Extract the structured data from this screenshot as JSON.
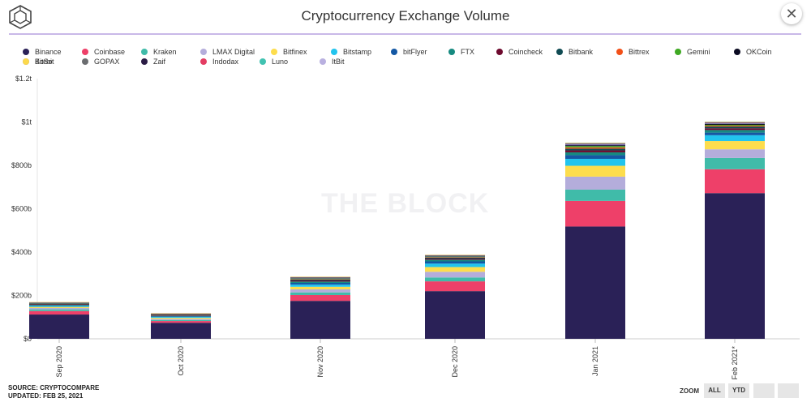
{
  "header": {
    "title": "Cryptocurrency Exchange Volume",
    "close_label": "✕"
  },
  "legend": {
    "items": [
      {
        "label": "Binance",
        "color": "#2a2157"
      },
      {
        "label": "Coinbase",
        "color": "#ee4069"
      },
      {
        "label": "Kraken",
        "color": "#40bba9"
      },
      {
        "label": "LMAX Digital",
        "color": "#b4addb"
      },
      {
        "label": "Bitfinex",
        "color": "#fddd4d"
      },
      {
        "label": "Bitstamp",
        "color": "#22c4ee"
      },
      {
        "label": "bitFlyer",
        "color": "#1458a4"
      },
      {
        "label": "FTX",
        "color": "#168a80"
      },
      {
        "label": "Coincheck",
        "color": "#6e0a2e"
      },
      {
        "label": "Bitbank",
        "color": "#104b53"
      },
      {
        "label": "Bittrex",
        "color": "#f25018"
      },
      {
        "label": "Gemini",
        "color": "#3fa923"
      },
      {
        "label": "OKCoin",
        "color": "#0b0b22"
      },
      {
        "label": "BitSo",
        "color": "#7170d5"
      },
      {
        "label": "GOPAX",
        "color": "#6b6d70"
      },
      {
        "label": "Zaif",
        "color": "#2a1b45"
      },
      {
        "label": "Indodax",
        "color": "#e33c62"
      },
      {
        "label": "Luno",
        "color": "#41c2b1"
      },
      {
        "label": "ItBit",
        "color": "#b9b0e0"
      },
      {
        "label": "Korbit",
        "color": "#fcd94b"
      }
    ]
  },
  "chart_data": {
    "type": "bar",
    "stacked": true,
    "title": "Cryptocurrency Exchange Volume",
    "xlabel": "",
    "ylabel": "",
    "categories": [
      "Sep 2020",
      "Oct 2020",
      "Nov 2020",
      "Dec 2020",
      "Jan 2021",
      "Feb 2021*"
    ],
    "ylim": [
      0,
      1200
    ],
    "y_unit": "billions USD",
    "y_ticks": [
      0,
      200,
      400,
      600,
      800,
      1000,
      1200
    ],
    "y_tick_labels": [
      "$0",
      "$200b",
      "$400b",
      "$600b",
      "$800b",
      "$1t",
      "$1.2t"
    ],
    "grid": false,
    "legend_position": "top",
    "series": [
      {
        "name": "Binance",
        "values": [
          112,
          74,
          175,
          220,
          518,
          672
        ]
      },
      {
        "name": "Coinbase",
        "values": [
          16,
          8,
          27,
          45,
          118,
          110
        ]
      },
      {
        "name": "Kraken",
        "values": [
          8,
          5,
          12,
          18,
          52,
          52
        ]
      },
      {
        "name": "LMAX Digital",
        "values": [
          6,
          5,
          14,
          26,
          60,
          40
        ]
      },
      {
        "name": "Bitfinex",
        "values": [
          5,
          5,
          12,
          22,
          50,
          38
        ]
      },
      {
        "name": "Bitstamp",
        "values": [
          4,
          4,
          10,
          16,
          32,
          27
        ]
      },
      {
        "name": "bitFlyer",
        "values": [
          3,
          3,
          8,
          10,
          17,
          12
        ]
      },
      {
        "name": "FTX",
        "values": [
          3,
          2,
          6,
          8,
          13,
          12
        ]
      },
      {
        "name": "Coincheck",
        "values": [
          2,
          2,
          5,
          5,
          9,
          8
        ]
      },
      {
        "name": "Bitbank",
        "values": [
          2,
          2,
          5,
          5,
          8,
          8
        ]
      },
      {
        "name": "Bittrex",
        "values": [
          1,
          1,
          2,
          2,
          6,
          4
        ]
      },
      {
        "name": "Gemini",
        "values": [
          1,
          1,
          2,
          2,
          6,
          4
        ]
      },
      {
        "name": "OKCoin",
        "values": [
          1,
          1,
          2,
          2,
          4,
          4
        ]
      },
      {
        "name": "BitSo",
        "values": [
          1,
          1,
          1,
          1,
          3,
          2
        ]
      },
      {
        "name": "GOPAX",
        "values": [
          1,
          1,
          1,
          1,
          2,
          2
        ]
      },
      {
        "name": "Zaif",
        "values": [
          1,
          1,
          1,
          1,
          2,
          2
        ]
      },
      {
        "name": "Indodax",
        "values": [
          1,
          1,
          1,
          1,
          2,
          2
        ]
      },
      {
        "name": "Luno",
        "values": [
          0.5,
          0.5,
          1,
          1,
          1,
          1
        ]
      },
      {
        "name": "ItBit",
        "values": [
          0.5,
          0.5,
          1,
          1,
          1,
          1
        ]
      },
      {
        "name": "Korbit",
        "values": [
          0.5,
          0.5,
          1,
          1,
          1,
          1
        ]
      }
    ]
  },
  "watermark": "THE BLOCK",
  "footer": {
    "source": "SOURCE: CRYPTOCOMPARE",
    "updated": "UPDATED: FEB 25, 2021",
    "zoom_label": "ZOOM",
    "zoom_all": "ALL",
    "zoom_ytd": "YTD"
  }
}
